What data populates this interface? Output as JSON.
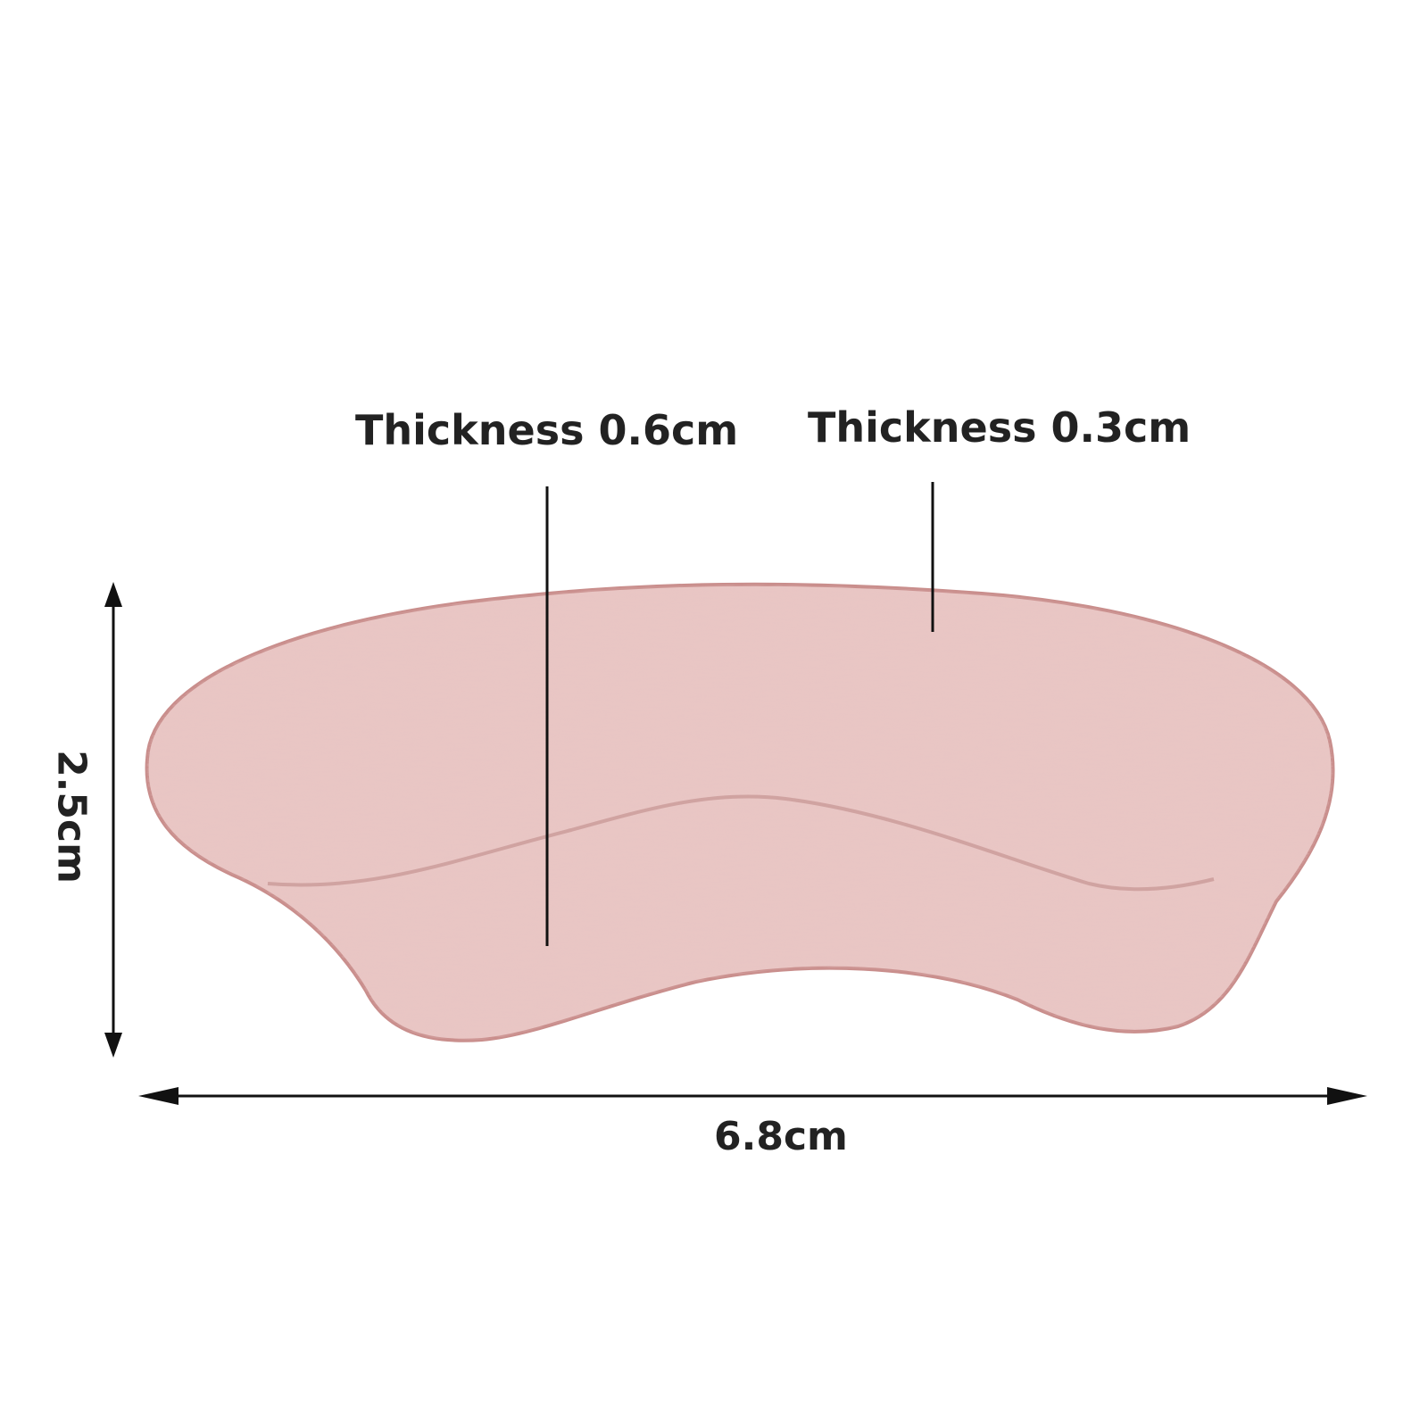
{
  "labels": {
    "thickness_left": "Thickness 0.6cm",
    "thickness_right": "Thickness 0.3cm",
    "width": "6.8cm",
    "height": "2.5cm"
  },
  "colors": {
    "pad": "#e9c6c4",
    "pad_edge": "#c98e8c",
    "text": "#222222",
    "lines": "#111111"
  }
}
